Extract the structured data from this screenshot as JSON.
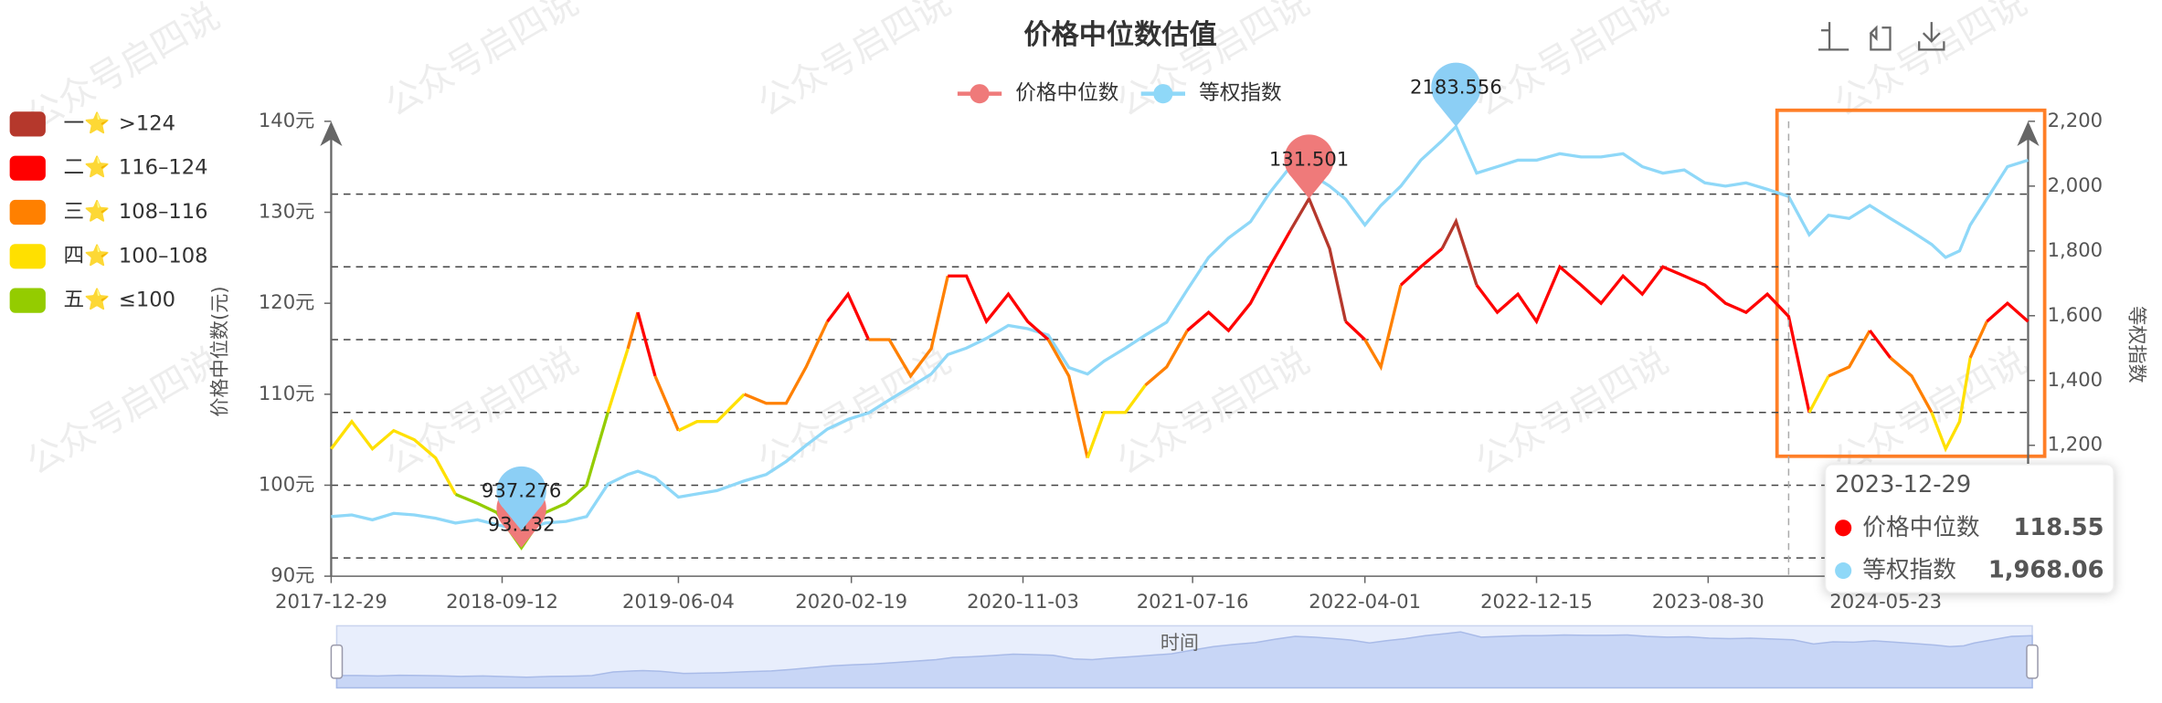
{
  "chart_data": {
    "type": "line",
    "title": "价格中位数估值",
    "watermark": "公众号启四说",
    "x_axis_name": "时间",
    "y_axis_name": "价格中位数(元)",
    "y2_axis_name": "等权指数",
    "x": [
      "2017-12-29",
      "2018-01-29",
      "2018-03-01",
      "2018-04-02",
      "2018-05-03",
      "2018-06-04",
      "2018-07-04",
      "2018-08-06",
      "2018-09-04",
      "2018-10-11",
      "2018-11-16",
      "2018-12-17",
      "2019-01-17",
      "2019-02-18",
      "2019-03-20",
      "2019-04-04",
      "2019-04-30",
      "2019-06-04",
      "2019-07-02",
      "2019-08-01",
      "2019-09-11",
      "2019-10-14",
      "2019-11-13",
      "2019-12-13",
      "2020-01-14",
      "2020-02-14",
      "2020-03-16",
      "2020-04-16",
      "2020-05-18",
      "2020-06-18",
      "2020-07-13",
      "2020-08-10",
      "2020-09-09",
      "2020-10-12",
      "2020-11-10",
      "2020-12-11",
      "2021-01-11",
      "2021-02-08",
      "2021-03-05",
      "2021-04-06",
      "2021-05-06",
      "2021-06-07",
      "2021-07-08",
      "2021-08-09",
      "2021-09-08",
      "2021-10-11",
      "2021-11-09",
      "2021-12-10",
      "2022-01-07",
      "2022-02-07",
      "2022-03-03",
      "2022-04-01",
      "2022-04-25",
      "2022-05-25",
      "2022-06-24",
      "2022-07-26",
      "2022-08-16",
      "2022-09-16",
      "2022-10-17",
      "2022-11-17",
      "2022-12-15",
      "2023-01-19",
      "2023-02-20",
      "2023-03-22",
      "2023-04-24",
      "2023-05-23",
      "2023-06-23",
      "2023-07-25",
      "2023-08-25",
      "2023-09-25",
      "2023-10-26",
      "2023-11-27",
      "2023-12-29",
      "2024-01-29",
      "2024-02-27",
      "2024-03-29",
      "2024-04-29",
      "2024-05-30",
      "2024-07-01",
      "2024-07-31",
      "2024-08-21",
      "2024-09-11",
      "2024-09-27",
      "2024-10-22",
      "2024-11-22",
      "2024-12-23"
    ],
    "xlim": [
      "2017-12-29",
      "2024-12-23"
    ],
    "xticks": [
      "2017-12-29",
      "2018-09-12",
      "2019-06-04",
      "2020-02-19",
      "2020-11-03",
      "2021-07-16",
      "2022-04-01",
      "2022-12-15",
      "2023-08-30",
      "2024-05-23"
    ],
    "ylim": [
      90,
      140
    ],
    "yticks": [
      {
        "value": 90,
        "label": "90元"
      },
      {
        "value": 100,
        "label": "100元"
      },
      {
        "value": 110,
        "label": "110元"
      },
      {
        "value": 120,
        "label": "120元"
      },
      {
        "value": 130,
        "label": "130元"
      },
      {
        "value": 140,
        "label": "140元"
      }
    ],
    "y2lim": [
      796,
      2200
    ],
    "y2ticks": [
      {
        "value": 1200,
        "label": "1,200"
      },
      {
        "value": 1400,
        "label": "1,400"
      },
      {
        "value": 1600,
        "label": "1,600"
      },
      {
        "value": 1800,
        "label": "1,800"
      },
      {
        "value": 2000,
        "label": "2,000"
      },
      {
        "value": 2200,
        "label": "2,200"
      }
    ],
    "mark_lines": [
      132,
      124,
      116,
      108,
      100,
      92
    ],
    "pieces": [
      {
        "label": "一⭐",
        "range": ">124",
        "min": 124,
        "color": "#b5382c"
      },
      {
        "label": "二⭐",
        "range": "116–124",
        "min": 116,
        "max": 124,
        "color": "#ff0000"
      },
      {
        "label": "三⭐",
        "range": "108–116",
        "min": 108,
        "max": 116,
        "color": "#ff8000"
      },
      {
        "label": "四⭐",
        "range": "100–108",
        "min": 100,
        "max": 108,
        "color": "#ffe000"
      },
      {
        "label": "五⭐",
        "range": "≤100",
        "max": 100,
        "color": "#94cc00"
      }
    ],
    "series": [
      {
        "name": "价格中位数",
        "color": "#ef7a7a",
        "mark_points": [
          "max",
          "min"
        ],
        "values": [
          104,
          107,
          104,
          106,
          105,
          103,
          99,
          98,
          97,
          93.132,
          97,
          98,
          100,
          108,
          115,
          119,
          112,
          106,
          107,
          107,
          110,
          109,
          109,
          113,
          118,
          121,
          116,
          116,
          112,
          115,
          123,
          123,
          118,
          121,
          118,
          116,
          112,
          103,
          108,
          108,
          111,
          113,
          117,
          119,
          117,
          120,
          124,
          128,
          131.501,
          126,
          118,
          116,
          113,
          122,
          124,
          126,
          129,
          122,
          119,
          121,
          118,
          124,
          122,
          120,
          123,
          121,
          124,
          123,
          122,
          120,
          119,
          121,
          118.55,
          108,
          112,
          113,
          117,
          114,
          112,
          108,
          104,
          107,
          114,
          118,
          120,
          118
        ]
      },
      {
        "name": "等权指数",
        "color": "#8fd8f8",
        "axis": "y2",
        "mark_points": [
          "max",
          "min"
        ],
        "values": [
          980,
          985,
          970,
          990,
          985,
          975,
          960,
          970,
          955,
          937.276,
          960,
          965,
          980,
          1080,
          1110,
          1120,
          1100,
          1040,
          1050,
          1060,
          1090,
          1110,
          1150,
          1200,
          1250,
          1280,
          1300,
          1340,
          1380,
          1420,
          1480,
          1500,
          1530,
          1570,
          1560,
          1540,
          1440,
          1420,
          1460,
          1500,
          1540,
          1580,
          1680,
          1780,
          1840,
          1890,
          1980,
          2060,
          2040,
          2000,
          1960,
          1880,
          1940,
          2000,
          2080,
          2140,
          2183.556,
          2040,
          2060,
          2080,
          2080,
          2100,
          2090,
          2090,
          2100,
          2060,
          2040,
          2050,
          2010,
          2000,
          2010,
          1990,
          1968.06,
          1850,
          1910,
          1900,
          1940,
          1900,
          1860,
          1820,
          1780,
          1800,
          1880,
          1960,
          2060,
          2080
        ]
      }
    ],
    "tooltip": {
      "x": "2023-12-29",
      "values": [
        118.55,
        1968.06
      ],
      "value_labels": [
        "118.55",
        "1,968.06"
      ]
    }
  }
}
